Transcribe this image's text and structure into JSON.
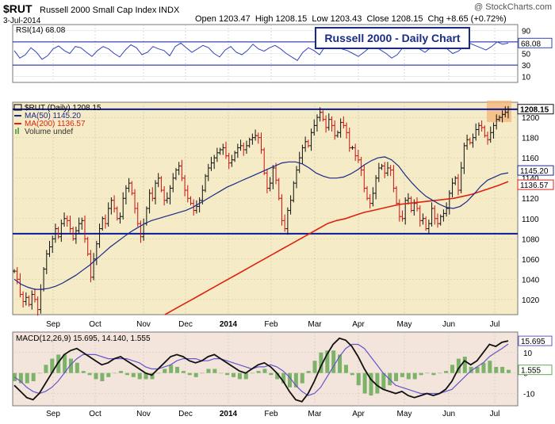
{
  "header": {
    "symbol": "$RUT",
    "name": "Russell 2000 Small Cap Index",
    "exchange": "INDX",
    "date": "3-Jul-2014",
    "ohlc": "Open 1203.47  High 1208.15  Low 1203.43  Close 1208.15  Chg +8.65 (+0.72%)",
    "watermark": "@ StockCharts.com"
  },
  "colors": {
    "price_bg": "#f5ebc6",
    "indicator_bg": "#f3e5dc",
    "rsi_line": "#3344bb",
    "hline": "#0a1a99",
    "ma50": "#1a2a88",
    "ma200": "#dd2211",
    "up_bar": "#111111",
    "down_bar": "#cc1111",
    "macd_line": "#111111",
    "signal_line": "#6655cc",
    "histogram": "#66aa55",
    "highlight": "#f4b87a",
    "title_box_border": "#1a2a88"
  },
  "chart_data": {
    "type": "line",
    "title": "Russell 2000 - Daily Chart",
    "months": [
      "Sep",
      "Oct",
      "Nov",
      "Dec",
      "2014",
      "Feb",
      "Mar",
      "Apr",
      "May",
      "Jun",
      "Jul"
    ],
    "rsi": {
      "label": "RSI(14) 68.08",
      "last": 68.08,
      "last_label": "68.08",
      "levels": [
        70,
        30
      ],
      "ticks": [
        "90",
        "70",
        "50",
        "30",
        "10"
      ],
      "ylim": [
        0,
        100
      ],
      "values": [
        55,
        42,
        48,
        60,
        52,
        40,
        46,
        58,
        63,
        55,
        50,
        62,
        60,
        52,
        45,
        55,
        62,
        58,
        50,
        44,
        56,
        65,
        60,
        48,
        52,
        62,
        58,
        55,
        46,
        62,
        68,
        60,
        52,
        58,
        64,
        60,
        50,
        44,
        56,
        62,
        52,
        48,
        55,
        66,
        58,
        54,
        60,
        64,
        58,
        50,
        44,
        38,
        52,
        60,
        55,
        48,
        62,
        70,
        64,
        58,
        55,
        50,
        45,
        52,
        60,
        62,
        56,
        50,
        42,
        48,
        60,
        66,
        62,
        58,
        52,
        60,
        64,
        62,
        58,
        50,
        54,
        62,
        68,
        64,
        60,
        56,
        62,
        70,
        66,
        68
      ]
    },
    "price": {
      "legend": {
        "price": "$RUT (Daily) 1208.15",
        "ma50": "MA(50) 1145.20",
        "ma200": "MA(200) 1136.57",
        "volume": "Volume undef"
      },
      "ylim": [
        1005,
        1215
      ],
      "ticks": [
        "1200",
        "1180",
        "1160",
        "1140",
        "1120",
        "1100",
        "1080",
        "1060",
        "1040",
        "1020"
      ],
      "hlines": [
        1208,
        1085
      ],
      "last_labels": [
        {
          "value": 1208.15,
          "text": "1208.15"
        },
        {
          "value": 1145.2,
          "text": "1145.20"
        },
        {
          "value": 1136.57,
          "text": "1136.57"
        }
      ],
      "close": [
        1048,
        1040,
        1025,
        1018,
        1022,
        1015,
        1025,
        1020,
        1010,
        1030,
        1050,
        1065,
        1072,
        1080,
        1090,
        1082,
        1095,
        1100,
        1098,
        1090,
        1080,
        1088,
        1095,
        1098,
        1080,
        1065,
        1042,
        1060,
        1075,
        1090,
        1100,
        1095,
        1110,
        1118,
        1110,
        1100,
        1102,
        1120,
        1130,
        1135,
        1125,
        1110,
        1095,
        1082,
        1095,
        1110,
        1125,
        1120,
        1135,
        1140,
        1128,
        1118,
        1120,
        1130,
        1140,
        1148,
        1152,
        1140,
        1128,
        1120,
        1115,
        1108,
        1112,
        1118,
        1128,
        1142,
        1150,
        1155,
        1160,
        1165,
        1168,
        1170,
        1162,
        1155,
        1158,
        1165,
        1170,
        1172,
        1168,
        1172,
        1178,
        1180,
        1182,
        1180,
        1168,
        1145,
        1130,
        1135,
        1150,
        1138,
        1120,
        1098,
        1090,
        1108,
        1118,
        1135,
        1148,
        1160,
        1170,
        1176,
        1172,
        1185,
        1192,
        1200,
        1205,
        1198,
        1190,
        1198,
        1192,
        1182,
        1185,
        1195,
        1192,
        1185,
        1170,
        1170,
        1162,
        1158,
        1148,
        1130,
        1120,
        1115,
        1125,
        1140,
        1150,
        1152,
        1145,
        1150,
        1148,
        1130,
        1115,
        1102,
        1100,
        1118,
        1120,
        1108,
        1115,
        1110,
        1098,
        1100,
        1090,
        1095,
        1110,
        1100,
        1095,
        1102,
        1105,
        1110,
        1125,
        1135,
        1140,
        1128,
        1150,
        1172,
        1178,
        1175,
        1180,
        1188,
        1192,
        1190,
        1182,
        1178,
        1185,
        1192,
        1198,
        1200,
        1203,
        1205,
        1208.15
      ],
      "ma50": [
        1040,
        1035,
        1032,
        1030,
        1030,
        1031,
        1033,
        1036,
        1040,
        1044,
        1049,
        1054,
        1060,
        1066,
        1072,
        1077,
        1082,
        1087,
        1091,
        1095,
        1098,
        1100,
        1102,
        1104,
        1106,
        1108,
        1111,
        1115,
        1119,
        1123,
        1127,
        1131,
        1134,
        1137,
        1140,
        1143,
        1146,
        1149,
        1152,
        1155,
        1156,
        1156,
        1154,
        1150,
        1145,
        1142,
        1140,
        1140,
        1141,
        1144,
        1148,
        1153,
        1157,
        1160,
        1161,
        1158,
        1152,
        1143,
        1135,
        1128,
        1122,
        1118,
        1114,
        1111,
        1110,
        1112,
        1117,
        1124,
        1132,
        1138,
        1141,
        1144,
        1145.2
      ],
      "ma200": [
        1005,
        1010,
        1015,
        1020,
        1025,
        1030,
        1035,
        1040,
        1045,
        1050,
        1055,
        1060,
        1065,
        1070,
        1075,
        1080,
        1085,
        1090,
        1095,
        1098,
        1100,
        1103,
        1106,
        1108,
        1110,
        1112,
        1114,
        1115,
        1116,
        1117,
        1118,
        1119,
        1120,
        1122,
        1124,
        1127,
        1130,
        1133,
        1136.57
      ]
    },
    "macd": {
      "label": "MACD(12,26,9) 15.695, 14.140, 1.555",
      "ticks": [
        "10",
        "0",
        "-10"
      ],
      "ylim": [
        -16,
        20
      ],
      "last_labels": [
        {
          "value": 15.695,
          "text": "15.695"
        },
        {
          "value": 1.555,
          "text": "1.555"
        }
      ],
      "macd": [
        -6,
        -9,
        -12,
        -13,
        -10,
        -5,
        0,
        5,
        9,
        11,
        12,
        10,
        8,
        6,
        4,
        5,
        7,
        8,
        6,
        4,
        2,
        0,
        -1,
        2,
        5,
        8,
        9,
        8,
        6,
        5,
        6,
        8,
        9,
        7,
        5,
        3,
        1,
        0,
        2,
        4,
        5,
        3,
        0,
        -4,
        -9,
        -13,
        -14,
        -10,
        -4,
        3,
        9,
        14,
        17,
        16,
        13,
        8,
        2,
        -3,
        -6,
        -8,
        -9,
        -10,
        -9,
        -11,
        -12,
        -11,
        -10,
        -11,
        -10,
        -8,
        -4,
        2,
        6,
        4,
        6,
        10,
        14,
        13,
        15,
        15.695
      ],
      "signal": [
        -2,
        -4,
        -7,
        -9,
        -10,
        -9,
        -7,
        -4,
        0,
        4,
        7,
        9,
        9,
        9,
        8,
        7,
        7,
        7,
        7,
        6,
        5,
        3,
        2,
        2,
        3,
        4,
        6,
        7,
        7,
        7,
        6,
        6,
        7,
        7,
        6,
        5,
        4,
        3,
        2,
        3,
        3,
        4,
        3,
        1,
        -2,
        -6,
        -9,
        -11,
        -10,
        -7,
        -2,
        3,
        8,
        12,
        14,
        14,
        12,
        8,
        4,
        0,
        -3,
        -6,
        -7,
        -8,
        -9,
        -10,
        -10,
        -10,
        -10,
        -9,
        -8,
        -5,
        -2,
        1,
        3,
        5,
        8,
        10,
        12,
        14.14
      ]
    }
  }
}
